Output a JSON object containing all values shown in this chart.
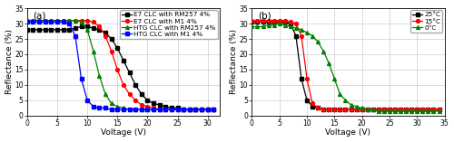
{
  "panel_a": {
    "title": "(a)",
    "xlabel": "Voltage (V)",
    "ylabel": "Reflectance (%)",
    "xlim": [
      0,
      32
    ],
    "ylim": [
      0,
      35
    ],
    "yticks": [
      0,
      5,
      10,
      15,
      20,
      25,
      30,
      35
    ],
    "xticks": [
      0,
      5,
      10,
      15,
      20,
      25,
      30
    ],
    "series": [
      {
        "label": "E7 CLC with RM257 4%",
        "color": "#000000",
        "marker": "s",
        "x": [
          0,
          1,
          2,
          3,
          4,
          5,
          6,
          7,
          8,
          9,
          10,
          11,
          12,
          13,
          14,
          15,
          16,
          17,
          18,
          19,
          20,
          21,
          22,
          23,
          24,
          25,
          26,
          27,
          28,
          29,
          30,
          31
        ],
        "y": [
          28,
          28,
          28,
          28,
          28,
          28,
          28,
          28,
          28.5,
          29,
          29,
          28.5,
          28,
          27,
          25,
          22,
          18,
          14,
          10,
          7,
          5,
          4,
          3.5,
          3,
          2.5,
          2.5,
          2,
          2,
          2,
          2,
          2,
          2
        ]
      },
      {
        "label": "E7 CLC with M1 4%",
        "color": "#ff0000",
        "marker": "o",
        "x": [
          0,
          1,
          2,
          3,
          4,
          5,
          6,
          7,
          8,
          9,
          10,
          11,
          12,
          13,
          14,
          15,
          16,
          17,
          18,
          19,
          20,
          21,
          22,
          23,
          24,
          25,
          26,
          27,
          28,
          29,
          30,
          31
        ],
        "y": [
          31,
          31,
          31,
          31,
          31,
          31,
          31,
          31,
          31,
          31,
          31,
          30.5,
          29,
          26,
          21,
          15,
          10,
          7,
          5,
          3.5,
          3,
          2.5,
          2,
          2,
          2,
          2,
          2,
          2,
          2,
          2,
          2,
          2
        ]
      },
      {
        "label": "HTG CLC with RM257 4%",
        "color": "#008000",
        "marker": "^",
        "x": [
          0,
          1,
          2,
          3,
          4,
          5,
          6,
          7,
          8,
          9,
          10,
          11,
          12,
          13,
          14,
          15,
          16,
          17,
          18,
          19,
          20,
          21,
          22,
          23,
          24,
          25,
          26,
          27,
          28,
          29,
          30,
          31
        ],
        "y": [
          31,
          31,
          31,
          31,
          31,
          31,
          31,
          31,
          31,
          30.5,
          28,
          21,
          13,
          7,
          4,
          3,
          2.5,
          2,
          2,
          2,
          2,
          2,
          2,
          2,
          2,
          2,
          2,
          2,
          2,
          2,
          2,
          2
        ]
      },
      {
        "label": "HTG CLC with M1 4%",
        "color": "#0000ff",
        "marker": "s",
        "x": [
          0,
          1,
          2,
          3,
          4,
          5,
          6,
          7,
          8,
          9,
          10,
          11,
          12,
          13,
          14,
          15,
          16,
          17,
          18,
          19,
          20,
          21,
          22,
          23,
          24,
          25,
          26,
          27,
          28,
          29,
          30,
          31
        ],
        "y": [
          30.5,
          30.5,
          30.5,
          30.5,
          30.5,
          30.5,
          30.5,
          30,
          26,
          12,
          5,
          3,
          2.5,
          2.5,
          2,
          2,
          2,
          2,
          2,
          2,
          2,
          2,
          2,
          2,
          2,
          2,
          2,
          2,
          2,
          2,
          2,
          2
        ]
      }
    ]
  },
  "panel_b": {
    "title": "(b)",
    "xlabel": "Voltage (V)",
    "ylabel": "Reflectance (%)",
    "xlim": [
      0,
      35
    ],
    "ylim": [
      0,
      35
    ],
    "yticks": [
      0,
      5,
      10,
      15,
      20,
      25,
      30,
      35
    ],
    "xticks": [
      0,
      5,
      10,
      15,
      20,
      25,
      30,
      35
    ],
    "series": [
      {
        "label": "25°C",
        "color": "#000000",
        "marker": "s",
        "x": [
          0,
          1,
          2,
          3,
          4,
          5,
          6,
          7,
          8,
          9,
          10,
          11,
          12,
          13,
          14,
          15,
          16,
          17,
          18,
          19,
          20,
          21,
          22,
          23,
          24,
          25,
          26,
          27,
          28,
          29,
          30,
          31,
          32,
          33,
          34
        ],
        "y": [
          30.5,
          30.5,
          30.5,
          30.5,
          30.5,
          30.5,
          30.5,
          30,
          26,
          12,
          5,
          3,
          2.5,
          2,
          2,
          2,
          2,
          2,
          2,
          2,
          2,
          2,
          2,
          2,
          2,
          2,
          2,
          2,
          2,
          2,
          2,
          2,
          2,
          2,
          2
        ]
      },
      {
        "label": "15°C",
        "color": "#ff0000",
        "marker": "o",
        "x": [
          0,
          1,
          2,
          3,
          4,
          5,
          6,
          7,
          8,
          9,
          10,
          11,
          12,
          13,
          14,
          15,
          16,
          17,
          18,
          19,
          20,
          21,
          22,
          23,
          24,
          25,
          26,
          27,
          28,
          29,
          30,
          31,
          32,
          33,
          34
        ],
        "y": [
          31,
          31,
          31,
          31,
          31,
          31,
          31,
          30.5,
          30,
          26,
          12,
          4,
          2.5,
          2,
          2,
          2,
          2,
          2,
          2,
          2,
          2,
          2,
          2,
          2,
          2,
          2,
          2,
          2,
          2,
          2,
          2,
          2,
          2,
          2,
          2
        ]
      },
      {
        "label": "0°C",
        "color": "#008000",
        "marker": "^",
        "x": [
          0,
          1,
          2,
          3,
          4,
          5,
          6,
          7,
          8,
          9,
          10,
          11,
          12,
          13,
          14,
          15,
          16,
          17,
          18,
          19,
          20,
          21,
          22,
          23,
          24,
          25,
          26,
          27,
          28,
          29,
          30,
          31,
          32,
          33,
          34
        ],
        "y": [
          29,
          29,
          29,
          29.5,
          29.5,
          30,
          29.5,
          29,
          28.5,
          28,
          27,
          26,
          24,
          21,
          17,
          12,
          7,
          5,
          3.5,
          3,
          2.5,
          2,
          2,
          1.5,
          1.5,
          1.5,
          1.5,
          1.5,
          1.5,
          1.5,
          1.5,
          1.5,
          1.5,
          1.5,
          1.5
        ]
      }
    ]
  },
  "fig_bg": "#ffffff",
  "panel_bg": "#ffffff",
  "grid_color": "#cccccc",
  "legend_fontsize": 5.2,
  "axis_fontsize": 6.5,
  "tick_fontsize": 5.5,
  "marker_size": 2.8,
  "line_width": 0.9
}
